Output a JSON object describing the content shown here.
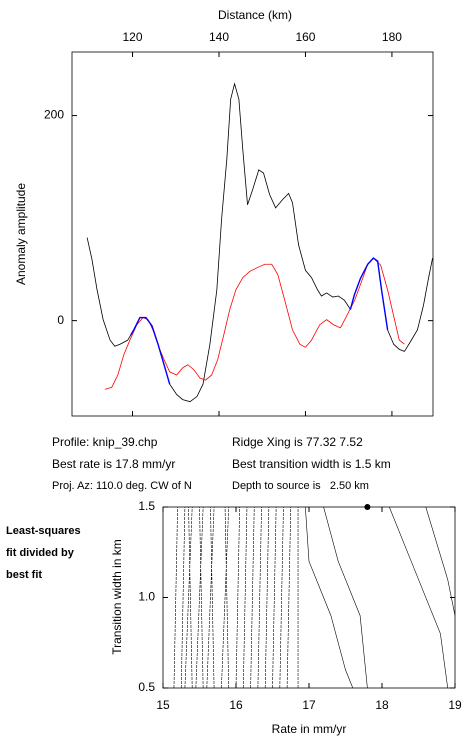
{
  "chart_data": [
    {
      "type": "line",
      "xlabel": "Distance (km)",
      "ylabel": "Anomaly amplitude",
      "xlim": [
        106,
        189.5
      ],
      "ylim": [
        -93,
        262
      ],
      "xticks": [
        120,
        140,
        160,
        180
      ],
      "yticks": [
        0,
        200
      ],
      "series": [
        {
          "color": "#000000",
          "x": [
            109.5,
            110.6,
            111.8,
            113.2,
            114.8,
            115.9,
            117.1,
            118.9,
            120.3,
            121.7,
            123.1,
            124.5,
            125.9,
            127.5,
            128.6,
            130.2,
            131.6,
            133.3,
            134.9,
            136.3,
            137.9,
            139.5,
            140.6,
            141.8,
            142.7,
            143.6,
            144.6,
            145.5,
            146.6,
            147.8,
            149.2,
            150.3,
            151.7,
            153.1,
            154.7,
            156.1,
            157.0,
            158.4,
            160.0,
            161.4,
            162.8,
            163.7,
            164.9,
            166.3,
            167.6,
            169.0,
            170.4,
            171.3,
            172.7,
            174.4,
            175.7,
            176.7,
            177.6,
            179.0,
            180.4,
            181.7,
            182.9,
            184.5,
            185.9,
            187.3,
            188.4,
            189.4
          ],
          "values": [
            81,
            60,
            30,
            1,
            -19,
            -25,
            -23,
            -19,
            -9,
            3,
            3,
            -5,
            -23,
            -46,
            -62,
            -72,
            -77,
            -79,
            -74,
            -62,
            -23,
            30,
            99,
            157,
            216,
            231,
            216,
            167,
            113,
            128,
            147,
            144,
            123,
            110,
            118,
            124,
            115,
            74,
            49,
            42,
            30,
            24,
            27,
            23,
            24,
            20,
            11,
            25,
            41,
            55,
            61,
            58,
            30,
            -9,
            -23,
            -28,
            -30,
            -19,
            -9,
            15,
            40,
            61
          ]
        },
        {
          "color": "#ff0000",
          "x": [
            113.6,
            115.2,
            116.6,
            118.0,
            119.6,
            121.0,
            122.4,
            123.6,
            124.7,
            126.3,
            127.5,
            128.6,
            130.2,
            131.6,
            132.8,
            134.2,
            135.6,
            136.9,
            138.3,
            139.7,
            141.1,
            142.5,
            143.9,
            145.5,
            147.1,
            149.0,
            150.6,
            152.2,
            153.6,
            155.2,
            157.0,
            158.7,
            160.0,
            161.4,
            163.3,
            164.9,
            166.5,
            168.1,
            169.7,
            171.4,
            172.7,
            174.4,
            175.7,
            177.4,
            179.0,
            180.6,
            181.7,
            182.9
          ],
          "values": [
            -67,
            -65,
            -53,
            -33,
            -17,
            -4,
            3,
            1,
            -9,
            -28,
            -40,
            -50,
            -53,
            -46,
            -43,
            -48,
            -56,
            -58,
            -53,
            -38,
            -14,
            11,
            30,
            42,
            48,
            52,
            55,
            55,
            45,
            20,
            -9,
            -23,
            -26,
            -19,
            -4,
            1,
            -4,
            -7,
            6,
            20,
            35,
            55,
            61,
            54,
            30,
            1,
            -19,
            -23
          ]
        },
        {
          "color": "#0000ff",
          "x": [
            119.6,
            120.3,
            121.7,
            123.1,
            124.5,
            125.9,
            127.5,
            128.6
          ],
          "values": [
            -14,
            -9,
            3,
            3,
            -5,
            -23,
            -46,
            -62
          ]
        },
        {
          "color": "#0000ff",
          "x": [
            170.4,
            171.3,
            172.7,
            174.4,
            175.7,
            176.7,
            177.6,
            179.0
          ],
          "values": [
            11,
            25,
            41,
            55,
            61,
            58,
            30,
            -9
          ]
        }
      ]
    },
    {
      "type": "contour",
      "xlabel": "Rate in mm/yr",
      "ylabel": "Transition width in km",
      "xlim": [
        15,
        19
      ],
      "ylim": [
        0.5,
        1.5
      ],
      "xticks": [
        15,
        16,
        17,
        18,
        19
      ],
      "yticks": [
        0.5,
        {
          "value": 1,
          "label": "1.0"
        },
        1.5
      ],
      "contours": [
        {
          "x": [
            15.15,
            15.2
          ],
          "values": [
            0.5,
            1.5
          ]
        },
        {
          "x": [
            15.25,
            15.3
          ],
          "values": [
            0.5,
            1.5
          ]
        },
        {
          "x": [
            15.3,
            15.4
          ],
          "values": [
            0.5,
            1.5
          ]
        },
        {
          "x": [
            15.4,
            15.35
          ],
          "values": [
            0.5,
            1.5
          ]
        },
        {
          "x": [
            15.45,
            15.55
          ],
          "values": [
            0.5,
            1.5
          ]
        },
        {
          "x": [
            15.55,
            15.5
          ],
          "values": [
            0.5,
            1.5
          ]
        },
        {
          "x": [
            15.6,
            15.7
          ],
          "values": [
            0.5,
            1.5
          ]
        },
        {
          "x": [
            15.7,
            15.65
          ],
          "values": [
            0.5,
            1.5
          ]
        },
        {
          "x": [
            15.8,
            15.9
          ],
          "values": [
            0.5,
            1.5
          ]
        },
        {
          "x": [
            15.9,
            15.85
          ],
          "values": [
            0.5,
            1.5
          ]
        },
        {
          "x": [
            16.0,
            16.05
          ],
          "values": [
            0.5,
            1.5
          ]
        },
        {
          "x": [
            16.1,
            16.15
          ],
          "values": [
            0.5,
            1.5
          ]
        },
        {
          "x": [
            16.2,
            16.25
          ],
          "values": [
            0.5,
            1.5
          ]
        },
        {
          "x": [
            16.3,
            16.35
          ],
          "values": [
            0.5,
            1.5
          ]
        },
        {
          "x": [
            16.4,
            16.45
          ],
          "values": [
            0.5,
            1.5
          ]
        },
        {
          "x": [
            16.5,
            16.55
          ],
          "values": [
            0.5,
            1.5
          ]
        },
        {
          "x": [
            16.6,
            16.65
          ],
          "values": [
            0.5,
            1.5
          ]
        },
        {
          "x": [
            16.7,
            16.75
          ],
          "values": [
            0.5,
            1.5
          ]
        },
        {
          "x": [
            16.85,
            16.85
          ],
          "values": [
            0.5,
            1.5
          ]
        },
        {
          "x": [
            17.6,
            17.5,
            17.3,
            17.0,
            16.95
          ],
          "values": [
            0.5,
            0.6,
            0.9,
            1.2,
            1.5
          ]
        },
        {
          "x": [
            17.8,
            17.7,
            17.4,
            17.2
          ],
          "values": [
            0.5,
            0.9,
            1.2,
            1.5
          ]
        },
        {
          "x": [
            18.9,
            18.8,
            18.4,
            18.1
          ],
          "values": [
            0.5,
            0.8,
            1.2,
            1.5
          ]
        },
        {
          "x": [
            19.0,
            18.9,
            18.6
          ],
          "values": [
            0.9,
            1.1,
            1.5
          ]
        }
      ],
      "best": {
        "x": 17.8,
        "y": 1.5
      }
    }
  ],
  "info": [
    "Profile: knip_39.chp",
    "Best rate is 17.8 mm/yr",
    "Proj. Az: 110.0 deg. CW of N",
    "Ridge Xing is 77.32 7.52",
    "Best transition width is 1.5 km",
    "Depth to source is   2.50 km"
  ],
  "side_note": [
    "Least-squares",
    "fit divided by",
    "best fit"
  ]
}
